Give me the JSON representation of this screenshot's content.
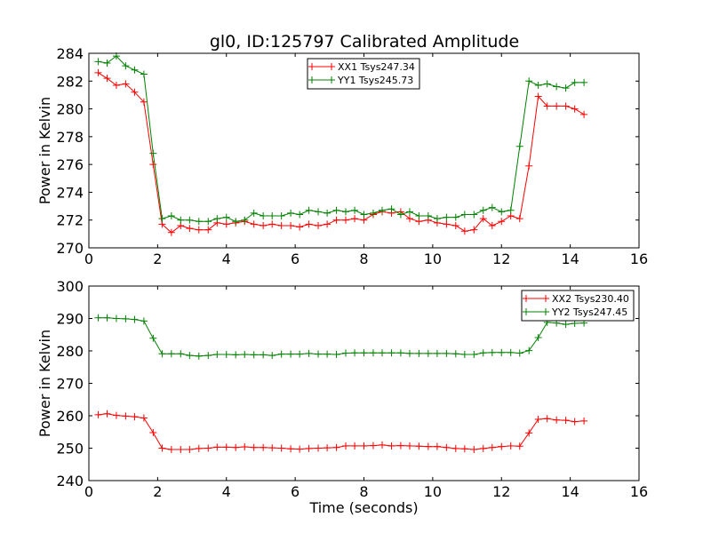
{
  "title": "gl0, ID:125797 Calibrated Amplitude",
  "chart_data": [
    {
      "type": "line",
      "xlabel": "",
      "ylabel": "Power in Kelvin",
      "xlim": [
        0,
        16
      ],
      "ylim": [
        270,
        284
      ],
      "xticks": [
        0,
        2,
        4,
        6,
        8,
        10,
        12,
        14,
        16
      ],
      "yticks": [
        270,
        272,
        274,
        276,
        278,
        280,
        282,
        284
      ],
      "grid": false,
      "legend_position": "top-center",
      "x": [
        0.27,
        0.53,
        0.8,
        1.07,
        1.33,
        1.6,
        1.87,
        2.13,
        2.4,
        2.67,
        2.93,
        3.2,
        3.47,
        3.73,
        4.0,
        4.27,
        4.53,
        4.8,
        5.07,
        5.33,
        5.6,
        5.87,
        6.13,
        6.4,
        6.67,
        6.93,
        7.2,
        7.47,
        7.73,
        8.0,
        8.27,
        8.53,
        8.8,
        9.07,
        9.33,
        9.6,
        9.87,
        10.13,
        10.4,
        10.67,
        10.93,
        11.2,
        11.47,
        11.73,
        12.0,
        12.27,
        12.53,
        12.8,
        13.07,
        13.33,
        13.6,
        13.87,
        14.13,
        14.4
      ],
      "series": [
        {
          "name": "XX1 Tsys247.34",
          "color": "#ff0000",
          "values": [
            282.6,
            282.2,
            281.7,
            281.8,
            281.2,
            280.5,
            276.0,
            271.7,
            271.1,
            271.6,
            271.4,
            271.3,
            271.3,
            271.8,
            271.7,
            271.8,
            271.9,
            271.7,
            271.6,
            271.7,
            271.6,
            271.6,
            271.5,
            271.7,
            271.6,
            271.7,
            272.0,
            272.0,
            272.1,
            272.0,
            272.4,
            272.6,
            272.5,
            272.6,
            272.1,
            271.9,
            272.0,
            271.8,
            271.7,
            271.6,
            271.2,
            271.3,
            272.1,
            271.6,
            271.9,
            272.3,
            272.1,
            275.9,
            280.9,
            280.2,
            280.2,
            280.2,
            280.0,
            279.6
          ]
        },
        {
          "name": "YY1 Tsys245.73",
          "color": "#008000",
          "values": [
            283.4,
            283.3,
            283.8,
            283.1,
            282.8,
            282.5,
            276.8,
            272.1,
            272.3,
            272.0,
            272.0,
            271.9,
            271.9,
            272.1,
            272.2,
            271.9,
            272.0,
            272.5,
            272.3,
            272.3,
            272.3,
            272.5,
            272.4,
            272.7,
            272.6,
            272.5,
            272.7,
            272.6,
            272.7,
            272.4,
            272.5,
            272.7,
            272.8,
            272.4,
            272.6,
            272.3,
            272.3,
            272.1,
            272.2,
            272.2,
            272.4,
            272.4,
            272.7,
            272.9,
            272.6,
            272.7,
            277.3,
            282.0,
            281.7,
            281.8,
            281.6,
            281.5,
            281.9,
            281.9
          ]
        }
      ]
    },
    {
      "type": "line",
      "xlabel": "Time (seconds)",
      "ylabel": "Power in Kelvin",
      "xlim": [
        0,
        16
      ],
      "ylim": [
        240,
        300
      ],
      "xticks": [
        0,
        2,
        4,
        6,
        8,
        10,
        12,
        14,
        16
      ],
      "yticks": [
        240,
        250,
        260,
        270,
        280,
        290,
        300
      ],
      "grid": false,
      "legend_position": "top-right",
      "x": [
        0.27,
        0.53,
        0.8,
        1.07,
        1.33,
        1.6,
        1.87,
        2.13,
        2.4,
        2.67,
        2.93,
        3.2,
        3.47,
        3.73,
        4.0,
        4.27,
        4.53,
        4.8,
        5.07,
        5.33,
        5.6,
        5.87,
        6.13,
        6.4,
        6.67,
        6.93,
        7.2,
        7.47,
        7.73,
        8.0,
        8.27,
        8.53,
        8.8,
        9.07,
        9.33,
        9.6,
        9.87,
        10.13,
        10.4,
        10.67,
        10.93,
        11.2,
        11.47,
        11.73,
        12.0,
        12.27,
        12.53,
        12.8,
        13.07,
        13.33,
        13.6,
        13.87,
        14.13,
        14.4
      ],
      "series": [
        {
          "name": "XX2 Tsys230.40",
          "color": "#ff0000",
          "values": [
            260.3,
            260.6,
            260.1,
            259.9,
            259.7,
            259.3,
            254.8,
            250.0,
            249.6,
            249.6,
            249.6,
            249.9,
            250.0,
            250.3,
            250.3,
            250.2,
            250.4,
            250.2,
            250.2,
            250.1,
            250.0,
            249.8,
            249.7,
            249.9,
            250.0,
            250.1,
            250.2,
            250.7,
            250.7,
            250.7,
            250.8,
            251.0,
            250.7,
            250.8,
            250.7,
            250.6,
            250.5,
            250.5,
            250.2,
            249.9,
            249.8,
            249.6,
            249.9,
            250.2,
            250.5,
            250.7,
            250.6,
            254.7,
            258.9,
            259.1,
            258.7,
            258.6,
            258.2,
            258.4
          ]
        },
        {
          "name": "YY2 Tsys247.45",
          "color": "#008000",
          "values": [
            290.2,
            290.2,
            290.0,
            289.9,
            289.7,
            289.2,
            283.9,
            279.1,
            279.1,
            279.1,
            278.6,
            278.4,
            278.6,
            278.9,
            278.9,
            278.8,
            278.9,
            278.8,
            278.8,
            278.6,
            279.0,
            279.0,
            279.0,
            279.2,
            279.0,
            279.0,
            278.9,
            279.3,
            279.4,
            279.4,
            279.4,
            279.4,
            279.4,
            279.4,
            279.2,
            279.2,
            279.2,
            279.2,
            279.2,
            279.1,
            278.9,
            278.9,
            279.4,
            279.5,
            279.5,
            279.5,
            279.3,
            280.1,
            284.1,
            288.8,
            288.6,
            288.2,
            288.5,
            288.6
          ]
        }
      ]
    }
  ]
}
